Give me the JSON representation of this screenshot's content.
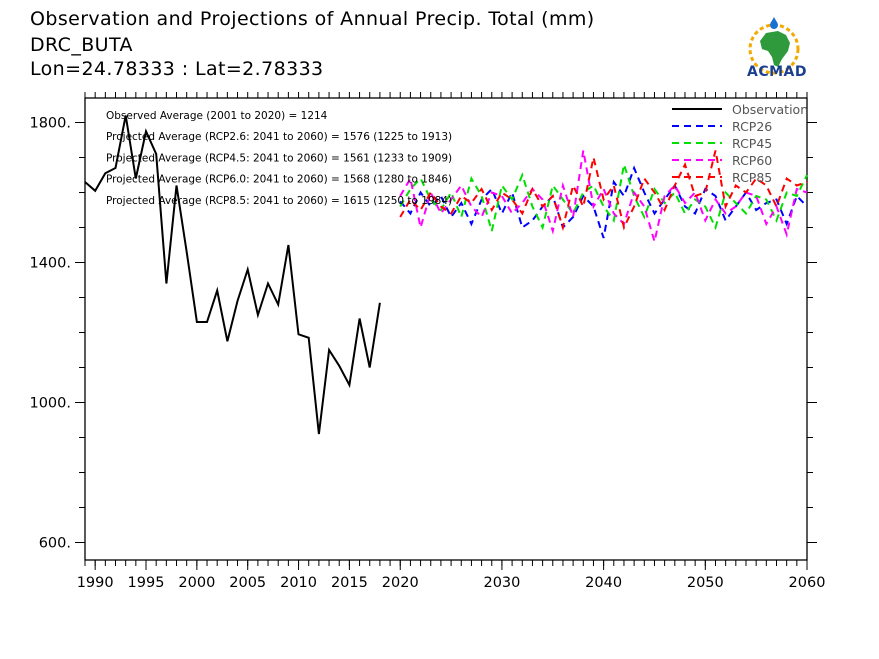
{
  "header": {
    "title": "Observation and Projections of Annual Precip. Total (mm)",
    "station": "DRC_BUTA",
    "coords": "Lon=24.78333 : Lat=2.78333"
  },
  "logo": {
    "text": "ACMAD"
  },
  "annotations": [
    "Observed Average (2001 to 2020) = 1214",
    "Projected Average (RCP2.6: 2041 to 2060) = 1576 (1225 to 1913)",
    "Projected Average (RCP4.5: 2041 to 2060) = 1561 (1233 to 1909)",
    "Projected Average (RCP6.0: 2041 to 2060) = 1568 (1280 to 1846)",
    "Projected Average (RCP8.5: 2041 to 2060) = 1615 (1250 to 1984)"
  ],
  "chart_data": {
    "type": "line",
    "xlim": [
      1989,
      2060
    ],
    "ylim": [
      550,
      1870
    ],
    "x_ticks": [
      1990,
      1995,
      2000,
      2005,
      2010,
      2015,
      2020,
      2030,
      2040,
      2050,
      2060
    ],
    "y_ticks": [
      600,
      1000,
      1400,
      1800
    ],
    "y_tick_labels": [
      "600.",
      "1000.",
      "1400.",
      "1800."
    ],
    "legend_position": "top-right",
    "series": [
      {
        "name": "Observation",
        "color": "#000000",
        "dash": "solid",
        "x": [
          1989,
          1990,
          1991,
          1992,
          1993,
          1994,
          1995,
          1996,
          1997,
          1998,
          1999,
          2000,
          2001,
          2002,
          2003,
          2004,
          2005,
          2006,
          2007,
          2008,
          2009,
          2010,
          2011,
          2012,
          2013,
          2014,
          2015,
          2016,
          2017,
          2018,
          2019,
          2020
        ],
        "values": [
          1630,
          1605,
          1655,
          1670,
          1820,
          1640,
          1775,
          1710,
          1340,
          1620,
          1430,
          1230,
          1230,
          1320,
          1175,
          1290,
          1380,
          1250,
          1340,
          1280,
          1450,
          1195,
          1185,
          910,
          1150,
          1105,
          1050,
          1240,
          1100,
          1285,
          null,
          null
        ]
      },
      {
        "name": "RCP26",
        "color": "#0000ff",
        "dash": "dashed",
        "x": [
          2020,
          2021,
          2022,
          2023,
          2024,
          2025,
          2026,
          2027,
          2028,
          2029,
          2030,
          2031,
          2032,
          2033,
          2034,
          2035,
          2036,
          2037,
          2038,
          2039,
          2040,
          2041,
          2042,
          2043,
          2044,
          2045,
          2046,
          2047,
          2048,
          2049,
          2050,
          2051,
          2052,
          2053,
          2054,
          2055,
          2056,
          2057,
          2058,
          2059,
          2060
        ],
        "values": [
          1575,
          1540,
          1600,
          1560,
          1590,
          1530,
          1570,
          1510,
          1580,
          1610,
          1540,
          1600,
          1500,
          1520,
          1560,
          1590,
          1500,
          1530,
          1590,
          1560,
          1470,
          1630,
          1590,
          1670,
          1600,
          1540,
          1580,
          1620,
          1560,
          1540,
          1610,
          1590,
          1520,
          1560,
          1600,
          1550,
          1570,
          1580,
          1510,
          1590,
          1560
        ]
      },
      {
        "name": "RCP45",
        "color": "#00e000",
        "dash": "dashed",
        "x": [
          2020,
          2021,
          2022,
          2023,
          2024,
          2025,
          2026,
          2027,
          2028,
          2029,
          2030,
          2031,
          2032,
          2033,
          2034,
          2035,
          2036,
          2037,
          2038,
          2039,
          2040,
          2041,
          2042,
          2043,
          2044,
          2045,
          2046,
          2047,
          2048,
          2049,
          2050,
          2051,
          2052,
          2053,
          2054,
          2055,
          2056,
          2057,
          2058,
          2059,
          2060
        ],
        "values": [
          1560,
          1610,
          1640,
          1580,
          1550,
          1600,
          1530,
          1640,
          1590,
          1490,
          1620,
          1580,
          1650,
          1560,
          1500,
          1620,
          1580,
          1540,
          1600,
          1620,
          1560,
          1520,
          1680,
          1590,
          1530,
          1610,
          1570,
          1600,
          1540,
          1580,
          1560,
          1500,
          1600,
          1570,
          1540,
          1590,
          1580,
          1520,
          1600,
          1590,
          1650
        ]
      },
      {
        "name": "RCP60",
        "color": "#ff00ff",
        "dash": "dashed",
        "x": [
          2020,
          2021,
          2022,
          2023,
          2024,
          2025,
          2026,
          2027,
          2028,
          2029,
          2030,
          2031,
          2032,
          2033,
          2034,
          2035,
          2036,
          2037,
          2038,
          2039,
          2040,
          2041,
          2042,
          2043,
          2044,
          2045,
          2046,
          2047,
          2048,
          2049,
          2050,
          2051,
          2052,
          2053,
          2054,
          2055,
          2056,
          2057,
          2058,
          2059,
          2060
        ],
        "values": [
          1590,
          1640,
          1500,
          1600,
          1540,
          1580,
          1620,
          1560,
          1530,
          1600,
          1590,
          1540,
          1570,
          1610,
          1580,
          1490,
          1620,
          1530,
          1720,
          1560,
          1610,
          1540,
          1510,
          1600,
          1560,
          1460,
          1590,
          1620,
          1570,
          1600,
          1520,
          1580,
          1540,
          1560,
          1600,
          1590,
          1510,
          1560,
          1480,
          1610,
          1600
        ]
      },
      {
        "name": "RCP85",
        "color": "#ff0000",
        "dash": "dashed",
        "x": [
          2020,
          2021,
          2022,
          2023,
          2024,
          2025,
          2026,
          2027,
          2028,
          2029,
          2030,
          2031,
          2032,
          2033,
          2034,
          2035,
          2036,
          2037,
          2038,
          2039,
          2040,
          2041,
          2042,
          2043,
          2044,
          2045,
          2046,
          2047,
          2048,
          2049,
          2050,
          2051,
          2052,
          2053,
          2054,
          2055,
          2056,
          2057,
          2058,
          2059,
          2060
        ],
        "values": [
          1530,
          1580,
          1550,
          1600,
          1560,
          1540,
          1590,
          1570,
          1610,
          1550,
          1600,
          1580,
          1540,
          1610,
          1560,
          1590,
          1500,
          1620,
          1560,
          1700,
          1580,
          1620,
          1500,
          1560,
          1640,
          1600,
          1550,
          1620,
          1680,
          1590,
          1600,
          1720,
          1560,
          1620,
          1600,
          1640,
          1620,
          1560,
          1640,
          1620,
          1630
        ]
      }
    ]
  }
}
